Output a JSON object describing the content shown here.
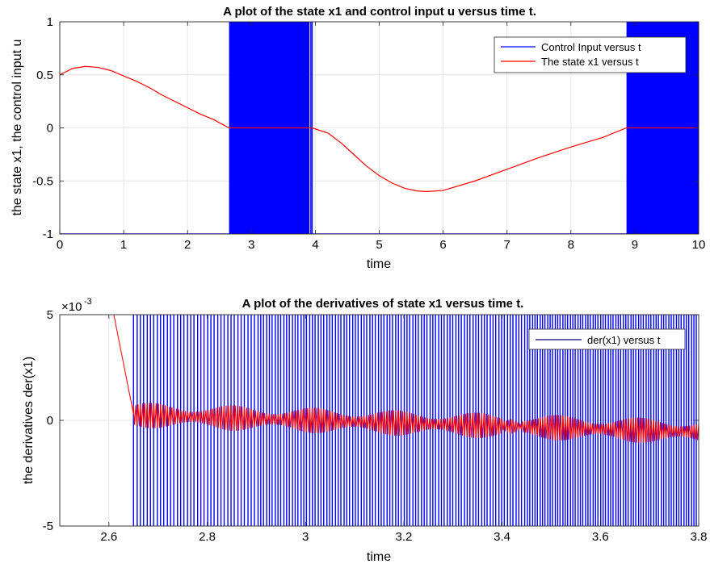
{
  "chart_data": [
    {
      "type": "line",
      "title": "A plot of the state x1 and control input u versus time t.",
      "xlabel": "time",
      "ylabel": "the state x1, the control input u",
      "xlim": [
        0,
        10
      ],
      "ylim": [
        -1,
        1
      ],
      "x_ticks": [
        "0",
        "1",
        "2",
        "3",
        "4",
        "5",
        "6",
        "7",
        "8",
        "9",
        "10"
      ],
      "y_ticks": [
        "-1",
        "-0.5",
        "0",
        "0.5",
        "1"
      ],
      "grid": true,
      "legend_position": "top-right",
      "series": [
        {
          "name": "Control Input versus t",
          "color": "#0000ff",
          "segments": [
            {
              "t0": 0,
              "t1": 2.65,
              "value": -1
            },
            {
              "t0": 2.65,
              "t1": 3.9,
              "chattering": true,
              "min": -1,
              "max": 1
            },
            {
              "t0": 3.9,
              "t1": 3.93,
              "value": -1
            },
            {
              "t0": 3.93,
              "t1": 3.95,
              "value": 1
            },
            {
              "t0": 3.95,
              "t1": 8.87,
              "value": -1
            },
            {
              "t0": 8.87,
              "t1": 10,
              "chattering": true,
              "min": -1,
              "max": 1
            }
          ]
        },
        {
          "name": "The state x1 versus t",
          "color": "#ff0000",
          "x": [
            0,
            0.2,
            0.4,
            0.6,
            0.8,
            1.0,
            1.2,
            1.4,
            1.6,
            1.8,
            2.0,
            2.2,
            2.4,
            2.65,
            3.0,
            3.5,
            3.95,
            4.2,
            4.4,
            4.6,
            4.8,
            5.0,
            5.2,
            5.4,
            5.6,
            5.75,
            6.0,
            6.5,
            7.0,
            7.5,
            8.0,
            8.5,
            8.87,
            9.2,
            9.6,
            10.0
          ],
          "y": [
            0.5,
            0.56,
            0.58,
            0.57,
            0.54,
            0.49,
            0.44,
            0.38,
            0.31,
            0.25,
            0.19,
            0.13,
            0.08,
            0.0,
            0.0,
            0.0,
            0.0,
            -0.05,
            -0.14,
            -0.25,
            -0.36,
            -0.45,
            -0.52,
            -0.57,
            -0.595,
            -0.6,
            -0.59,
            -0.5,
            -0.39,
            -0.28,
            -0.18,
            -0.09,
            0.0,
            0.0,
            0.0,
            0.0
          ]
        }
      ]
    },
    {
      "type": "line",
      "title": "A plot of the derivatives of state x1 versus time t.",
      "xlabel": "time",
      "ylabel": "the derivatives der(x1)",
      "xlim": [
        2.5,
        3.8
      ],
      "ylim": [
        -0.005,
        0.005
      ],
      "exponent_label": "×10",
      "exponent_power": "-3",
      "x_ticks": [
        "2.6",
        "2.8",
        "3",
        "3.2",
        "3.4",
        "3.6",
        "3.8"
      ],
      "y_ticks": [
        "-5",
        "0",
        "5"
      ],
      "grid": true,
      "legend_position": "top-right",
      "series": [
        {
          "name": "der(x1) versus t",
          "color": "#00008b",
          "legend_only": true
        },
        {
          "name": "",
          "color": "#0000ff",
          "chattering_start": 2.65,
          "min": -0.005,
          "max": 0.005
        },
        {
          "name": "",
          "color": "#ff0000",
          "x": [
            2.61,
            2.65
          ],
          "y": [
            0.005,
            0.0003
          ],
          "noise_start": 2.65,
          "noise_end": 3.8,
          "noise_amplitude": 0.0012,
          "noise_center": 0.00025
        }
      ]
    }
  ]
}
